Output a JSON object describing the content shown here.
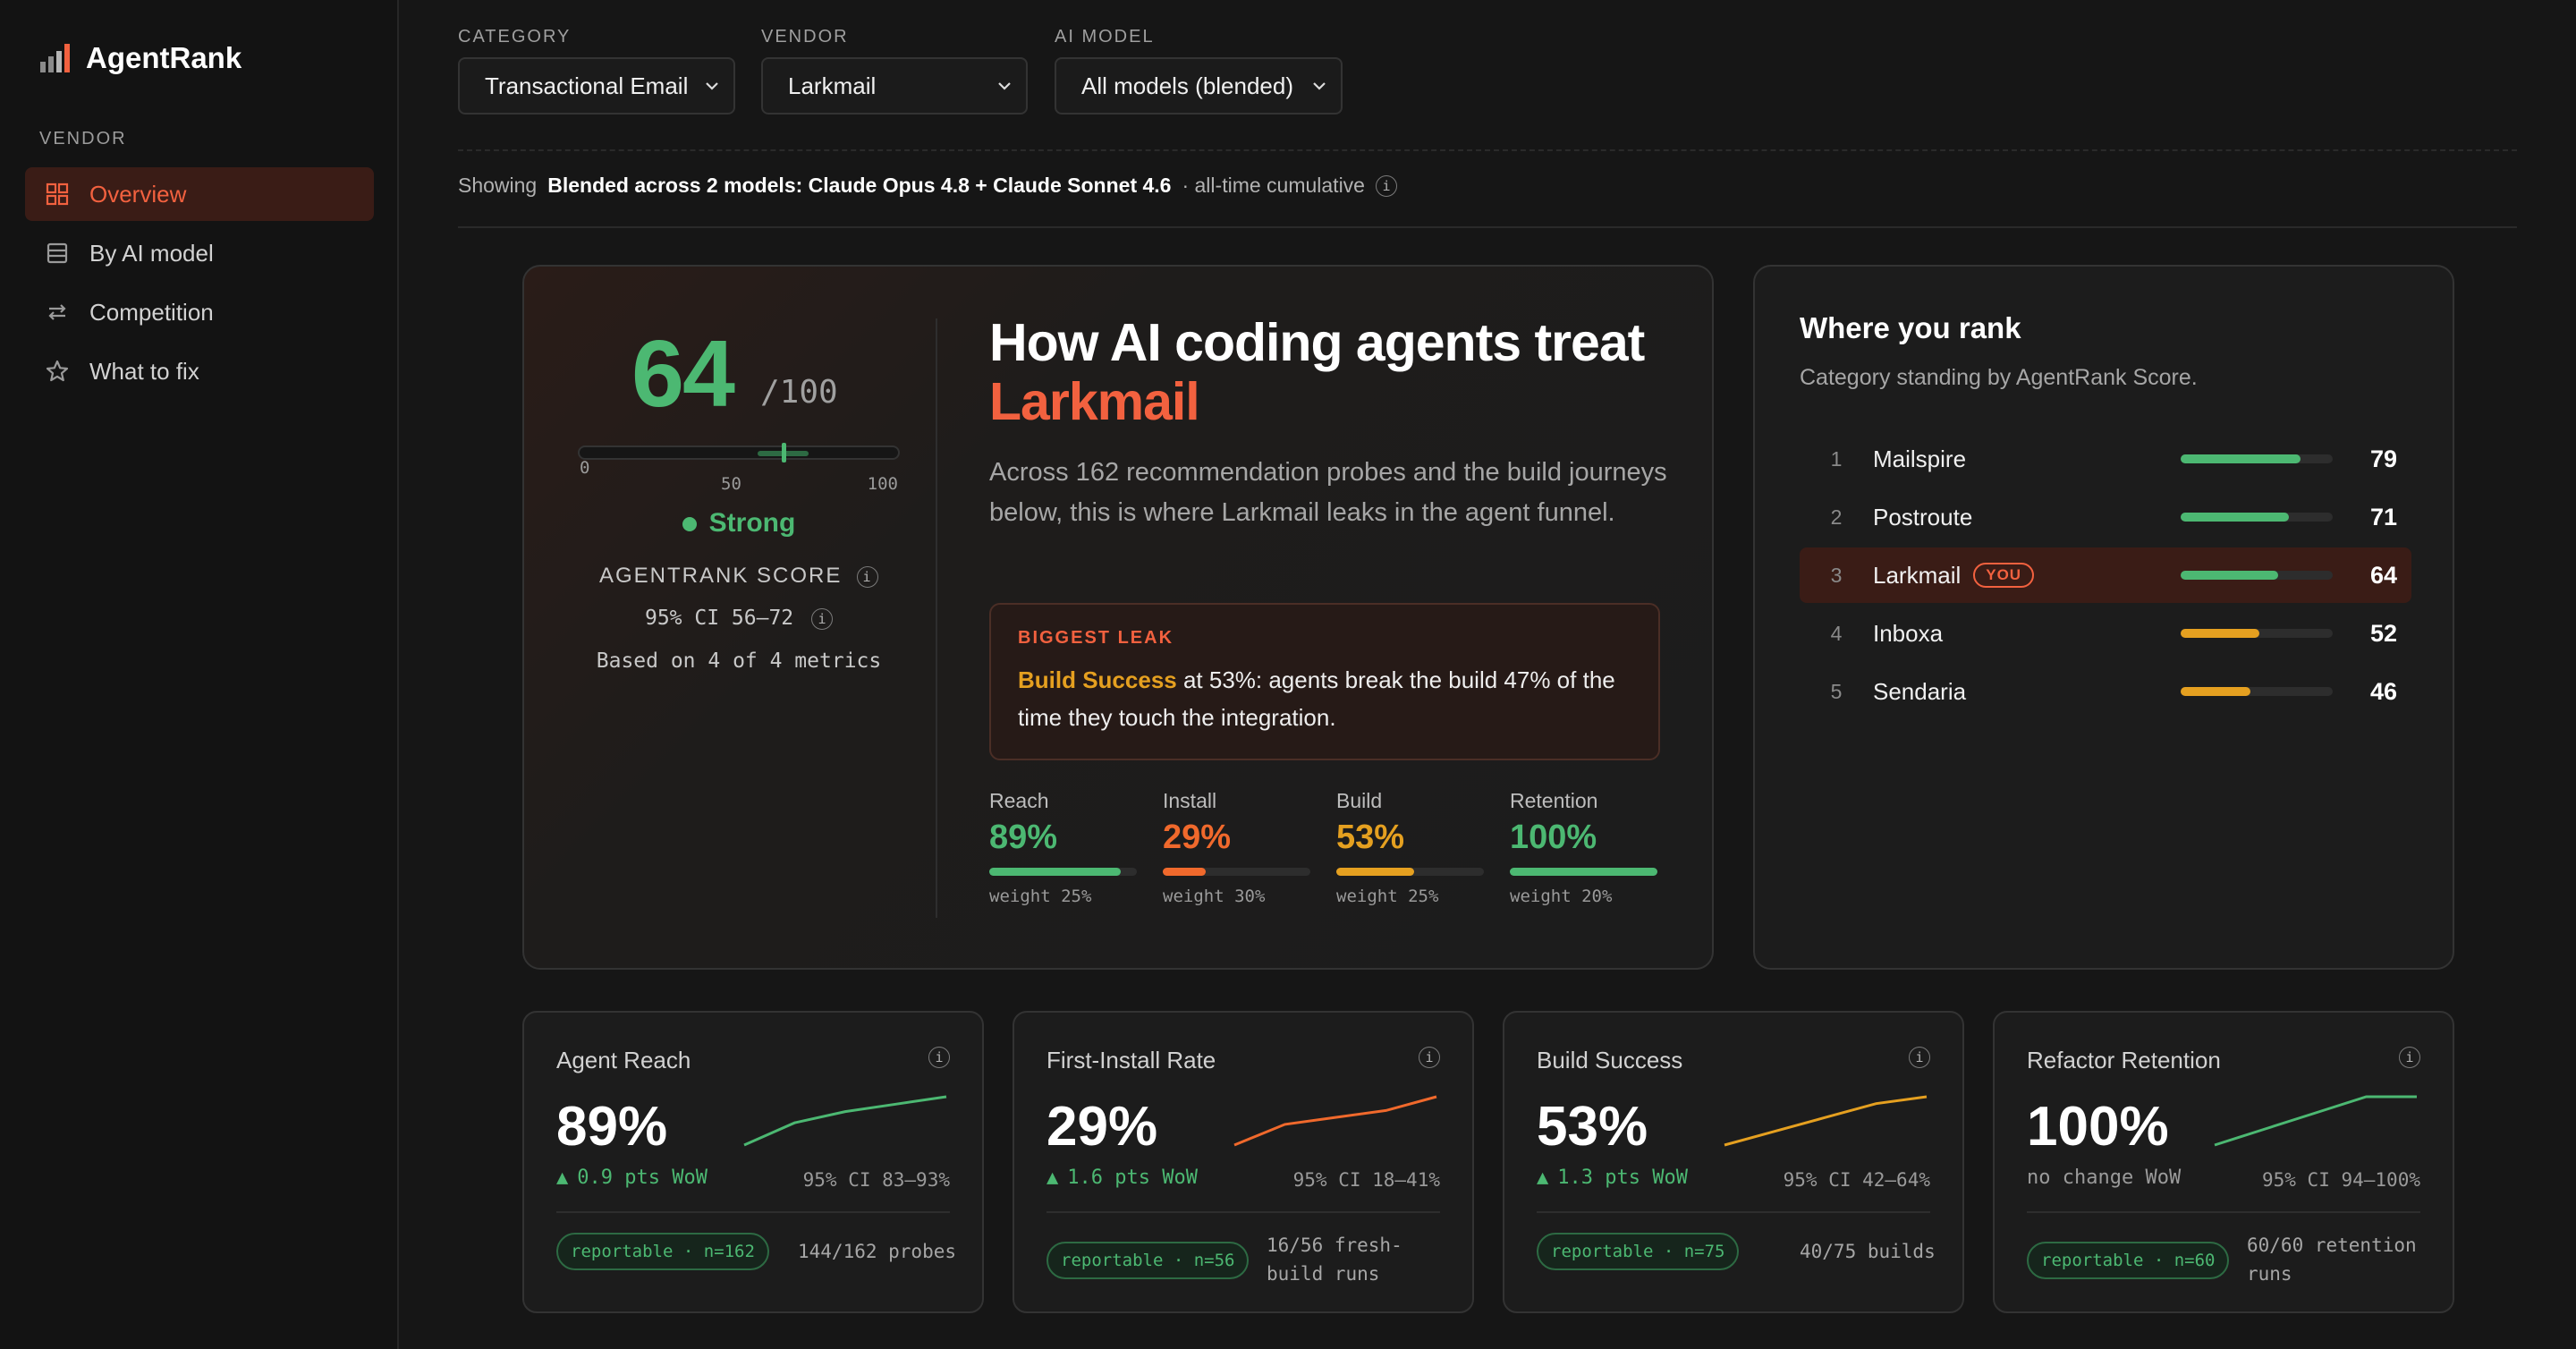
{
  "app": {
    "name": "AgentRank"
  },
  "sidebar": {
    "section": "VENDOR",
    "items": [
      {
        "label": "Overview",
        "icon": "grid-icon",
        "active": true
      },
      {
        "label": "By AI model",
        "icon": "list-icon",
        "active": false
      },
      {
        "label": "Competition",
        "icon": "arrows-swap-icon",
        "active": false
      },
      {
        "label": "What to fix",
        "icon": "star-icon",
        "active": false
      }
    ]
  },
  "filters": {
    "category": {
      "label": "CATEGORY",
      "value": "Transactional Email"
    },
    "vendor": {
      "label": "VENDOR",
      "value": "Larkmail"
    },
    "model": {
      "label": "AI MODEL",
      "value": "All models (blended)"
    }
  },
  "showing": {
    "prefix": "Showing",
    "bold": "Blended across 2 models: Claude Opus 4.8 + Claude Sonnet 4.6",
    "suffix": "· all-time cumulative"
  },
  "hero": {
    "score": "64",
    "score_max": "/100",
    "score_value": 64,
    "ci_low": 56,
    "ci_high": 72,
    "ticks": [
      "0",
      "50",
      "100"
    ],
    "rating": "Strong",
    "score_label": "AGENTRANK SCORE",
    "ci_text": "95% CI 56–72",
    "based_on": "Based on 4 of 4 metrics",
    "title_line1": "How AI coding agents treat",
    "title_brand": "Larkmail",
    "description": "Across 162 recommendation probes and the build journeys below, this is where Larkmail leaks in the agent funnel.",
    "leak_title": "BIGGEST LEAK",
    "leak_highlight": "Build Success",
    "leak_text": " at 53%: agents break the build 47% of the time they touch the integration.",
    "metrics": [
      {
        "label": "Reach",
        "value": "89%",
        "pct": 89,
        "weight": "weight 25%",
        "color": "#4cb872"
      },
      {
        "label": "Install",
        "value": "29%",
        "pct": 29,
        "weight": "weight 30%",
        "color": "#f0692c"
      },
      {
        "label": "Build",
        "value": "53%",
        "pct": 53,
        "weight": "weight 25%",
        "color": "#e5a020"
      },
      {
        "label": "Retention",
        "value": "100%",
        "pct": 100,
        "weight": "weight 20%",
        "color": "#4cb872"
      }
    ]
  },
  "ranking": {
    "title": "Where you rank",
    "subtitle": "Category standing by AgentRank Score.",
    "rows": [
      {
        "rank": "1",
        "name": "Mailspire",
        "score": "79",
        "value": 79,
        "color": "#4cb872",
        "you": false
      },
      {
        "rank": "2",
        "name": "Postroute",
        "score": "71",
        "value": 71,
        "color": "#4cb872",
        "you": false
      },
      {
        "rank": "3",
        "name": "Larkmail",
        "score": "64",
        "value": 64,
        "color": "#4cb872",
        "you": true,
        "badge": "YOU"
      },
      {
        "rank": "4",
        "name": "Inboxa",
        "score": "52",
        "value": 52,
        "color": "#e5a020",
        "you": false
      },
      {
        "rank": "5",
        "name": "Sendaria",
        "score": "46",
        "value": 46,
        "color": "#e5a020",
        "you": false
      }
    ]
  },
  "cards": [
    {
      "title": "Agent Reach",
      "value": "89%",
      "wow": "0.9 pts WoW",
      "trend": "up",
      "ci": "95% CI 83–93%",
      "pill": "reportable · n=162",
      "foot": [
        "144/162 probes"
      ],
      "color": "#4cb872",
      "spark": [
        76,
        82,
        85,
        87,
        89
      ]
    },
    {
      "title": "First-Install Rate",
      "value": "29%",
      "wow": "1.6 pts WoW",
      "trend": "up",
      "ci": "95% CI 18–41%",
      "pill": "reportable · n=56",
      "foot": [
        "16/56 fresh-",
        "build runs"
      ],
      "color": "#f0692c",
      "spark": [
        22,
        25,
        26,
        27,
        29
      ]
    },
    {
      "title": "Build Success",
      "value": "53%",
      "wow": "1.3 pts WoW",
      "trend": "up",
      "ci": "95% CI 42–64%",
      "pill": "reportable · n=75",
      "foot": [
        "40/75 builds"
      ],
      "color": "#e5a020",
      "spark": [
        46,
        48,
        50,
        52,
        53
      ]
    },
    {
      "title": "Refactor Retention",
      "value": "100%",
      "wow": "no change WoW",
      "trend": "flat",
      "ci": "95% CI 94–100%",
      "pill": "reportable · n=60",
      "foot": [
        "60/60 retention",
        "runs"
      ],
      "color": "#4cb872",
      "spark": [
        94,
        96,
        98,
        100,
        100
      ]
    }
  ]
}
